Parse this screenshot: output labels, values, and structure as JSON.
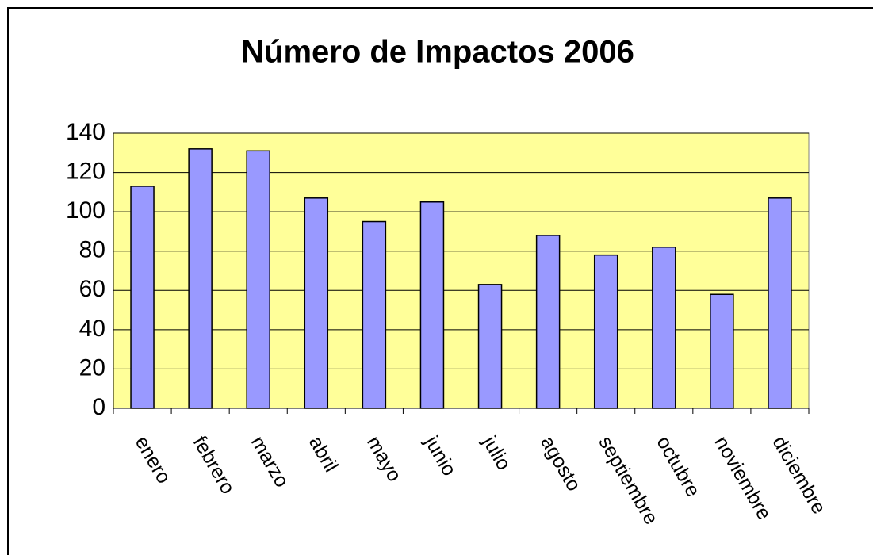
{
  "chart_data": {
    "type": "bar",
    "title": "Número de Impactos 2006",
    "categories": [
      "enero",
      "febrero",
      "marzo",
      "abril",
      "mayo",
      "junio",
      "julio",
      "agosto",
      "septiembre",
      "octubre",
      "noviembre",
      "diciembre"
    ],
    "values": [
      113,
      132,
      131,
      107,
      95,
      105,
      63,
      88,
      78,
      82,
      58,
      107
    ],
    "color": "#9999ff",
    "plot_background": "#ffff99",
    "ylim": [
      0,
      140
    ],
    "yticks": [
      0,
      20,
      40,
      60,
      80,
      100,
      120,
      140
    ],
    "grid": true
  }
}
